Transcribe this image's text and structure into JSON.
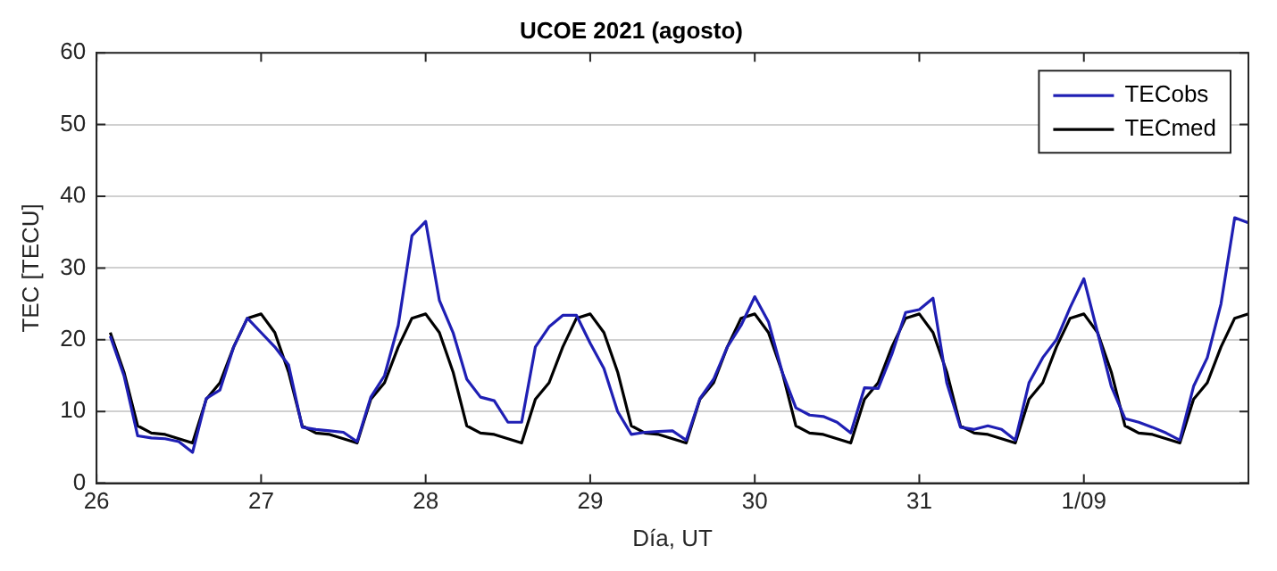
{
  "chart_data": {
    "type": "line",
    "title": "UCOE 2021 (agosto)",
    "xlabel": "Día, UT",
    "ylabel": "TEC [TECU]",
    "x": [
      "2021-08-26T02:00",
      "2021-08-26T04:00",
      "2021-08-26T06:00",
      "2021-08-26T08:00",
      "2021-08-26T10:00",
      "2021-08-26T12:00",
      "2021-08-26T14:00",
      "2021-08-26T16:00",
      "2021-08-26T18:00",
      "2021-08-26T20:00",
      "2021-08-26T22:00",
      "2021-08-27T00:00",
      "2021-08-27T02:00",
      "2021-08-27T04:00",
      "2021-08-27T06:00",
      "2021-08-27T08:00",
      "2021-08-27T10:00",
      "2021-08-27T12:00",
      "2021-08-27T14:00",
      "2021-08-27T16:00",
      "2021-08-27T18:00",
      "2021-08-27T20:00",
      "2021-08-27T22:00",
      "2021-08-28T00:00",
      "2021-08-28T02:00",
      "2021-08-28T04:00",
      "2021-08-28T06:00",
      "2021-08-28T08:00",
      "2021-08-28T10:00",
      "2021-08-28T12:00",
      "2021-08-28T14:00",
      "2021-08-28T16:00",
      "2021-08-28T18:00",
      "2021-08-28T20:00",
      "2021-08-28T22:00",
      "2021-08-29T00:00",
      "2021-08-29T02:00",
      "2021-08-29T04:00",
      "2021-08-29T06:00",
      "2021-08-29T08:00",
      "2021-08-29T10:00",
      "2021-08-29T12:00",
      "2021-08-29T14:00",
      "2021-08-29T16:00",
      "2021-08-29T18:00",
      "2021-08-29T20:00",
      "2021-08-29T22:00",
      "2021-08-30T00:00",
      "2021-08-30T02:00",
      "2021-08-30T04:00",
      "2021-08-30T06:00",
      "2021-08-30T08:00",
      "2021-08-30T10:00",
      "2021-08-30T12:00",
      "2021-08-30T14:00",
      "2021-08-30T16:00",
      "2021-08-30T18:00",
      "2021-08-30T20:00",
      "2021-08-30T22:00",
      "2021-08-31T00:00",
      "2021-08-31T02:00",
      "2021-08-31T04:00",
      "2021-08-31T06:00",
      "2021-08-31T08:00",
      "2021-08-31T10:00",
      "2021-08-31T12:00",
      "2021-08-31T14:00",
      "2021-08-31T16:00",
      "2021-08-31T18:00",
      "2021-08-31T20:00",
      "2021-08-31T22:00",
      "2021-09-01T00:00",
      "2021-09-01T02:00",
      "2021-09-01T04:00",
      "2021-09-01T06:00",
      "2021-09-01T08:00",
      "2021-09-01T10:00",
      "2021-09-01T12:00",
      "2021-09-01T14:00",
      "2021-09-01T16:00",
      "2021-09-01T18:00",
      "2021-09-01T20:00",
      "2021-09-01T22:00",
      "2021-09-02T00:00"
    ],
    "series": [
      {
        "name": "TECobs",
        "color": "#1f1fb4",
        "values": [
          20.5,
          15,
          6.6,
          6.3,
          6.2,
          5.8,
          4.3,
          11.8,
          13,
          19,
          23,
          21,
          19,
          16.5,
          7.8,
          7.5,
          7.3,
          7.1,
          5.8,
          12,
          15,
          22,
          34.5,
          36.5,
          25.5,
          21,
          14.5,
          12,
          11.5,
          8.5,
          8.5,
          19,
          21.8,
          23.4,
          23.4,
          19.5,
          16,
          10,
          6.8,
          7.1,
          7.2,
          7.3,
          6,
          11.8,
          14.5,
          19,
          22,
          26,
          22.5,
          15.5,
          10.5,
          9.5,
          9.3,
          8.5,
          7,
          13.3,
          13.2,
          18,
          23.8,
          24.2,
          25.8,
          14,
          7.8,
          7.5,
          8,
          7.5,
          6,
          14,
          17.5,
          20,
          24.5,
          28.5,
          21,
          13.5,
          9,
          8.5,
          7.8,
          7,
          6,
          13.5,
          17.5,
          25,
          37,
          36.3
        ]
      },
      {
        "name": "TECmed",
        "color": "#000000",
        "values": [
          21,
          15.5,
          8,
          7,
          6.8,
          6.2,
          5.6,
          11.7,
          14,
          19,
          23,
          23.6,
          21,
          15.5,
          8,
          7,
          6.8,
          6.2,
          5.6,
          11.7,
          14,
          19,
          23,
          23.6,
          21,
          15.5,
          8,
          7,
          6.8,
          6.2,
          5.6,
          11.7,
          14,
          19,
          23,
          23.6,
          21,
          15.5,
          8,
          7,
          6.8,
          6.2,
          5.6,
          11.7,
          14,
          19,
          23,
          23.6,
          21,
          15.5,
          8,
          7,
          6.8,
          6.2,
          5.6,
          11.7,
          14,
          19,
          23,
          23.6,
          21,
          15.5,
          8,
          7,
          6.8,
          6.2,
          5.6,
          11.7,
          14,
          19,
          23,
          23.6,
          21,
          15.5,
          8,
          7,
          6.8,
          6.2,
          5.6,
          11.7,
          14,
          19,
          23,
          23.6
        ]
      }
    ],
    "xlim": [
      "2021-08-26",
      "2021-09-02"
    ],
    "xticks": [
      {
        "value": "2021-08-26",
        "label": "26"
      },
      {
        "value": "2021-08-27",
        "label": "27"
      },
      {
        "value": "2021-08-28",
        "label": "28"
      },
      {
        "value": "2021-08-29",
        "label": "29"
      },
      {
        "value": "2021-08-30",
        "label": "30"
      },
      {
        "value": "2021-08-31",
        "label": "31"
      },
      {
        "value": "2021-09-01",
        "label": "1/09"
      }
    ],
    "ylim": [
      0,
      60
    ],
    "yticks": [
      0,
      10,
      20,
      30,
      40,
      50,
      60
    ],
    "grid": "y",
    "legend": "top right",
    "marker": "none",
    "line_style": "solid"
  }
}
